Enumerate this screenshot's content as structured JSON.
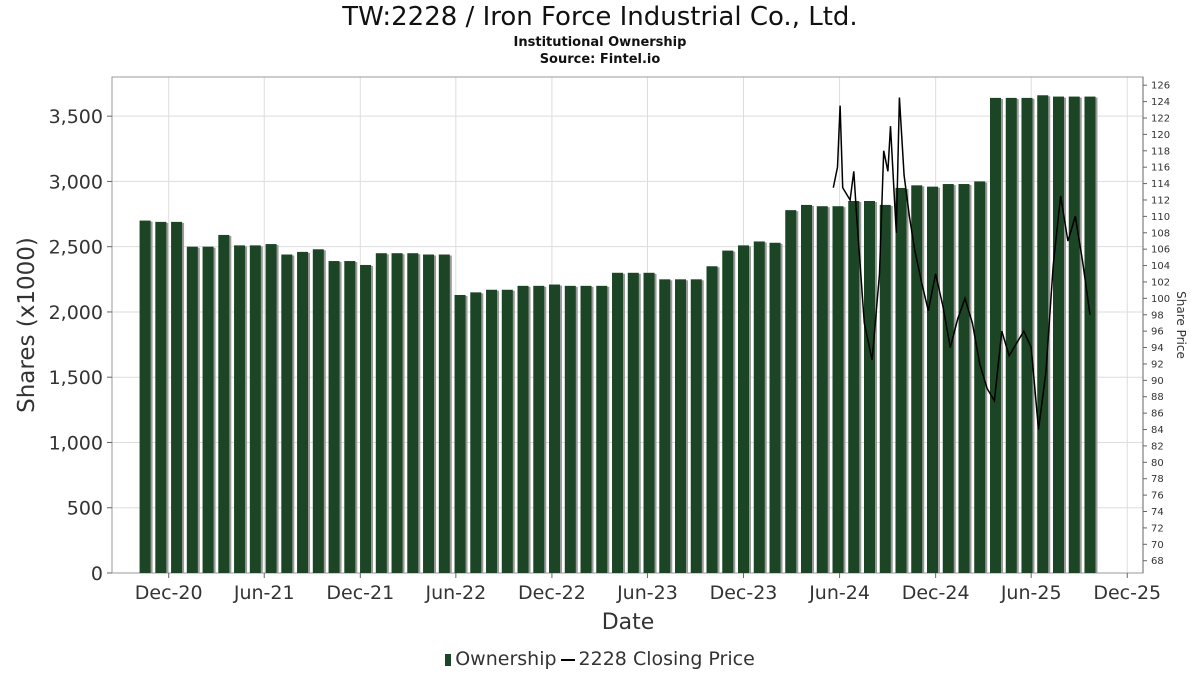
{
  "title": "TW:2228 / Iron Force Industrial Co., Ltd.",
  "subtitle": "Institutional Ownership",
  "source": "Source: Fintel.io",
  "legend": {
    "ownership": "Ownership",
    "price": "2228 Closing Price"
  },
  "colors": {
    "bar": "#1b4524",
    "bar_shadow": "#9a9a9a",
    "line": "#000000",
    "grid": "#dddddd"
  },
  "chart_data": {
    "type": "bar",
    "title": "TW:2228 / Iron Force Industrial Co., Ltd.",
    "xlabel": "Date",
    "ylabel": "Shares (x1000)",
    "y2label": "Share Price",
    "ylim": [
      0,
      3800
    ],
    "y2lim": [
      66.5,
      127
    ],
    "xlim": [
      "2020-08-15",
      "2025-12-31"
    ],
    "grid": true,
    "legend_position": "bottom",
    "x_ticks": [
      {
        "label": "Dec-20",
        "date": "2020-12-01"
      },
      {
        "label": "Jun-21",
        "date": "2021-06-01"
      },
      {
        "label": "Dec-21",
        "date": "2021-12-01"
      },
      {
        "label": "Jun-22",
        "date": "2022-06-01"
      },
      {
        "label": "Dec-22",
        "date": "2022-12-01"
      },
      {
        "label": "Jun-23",
        "date": "2023-06-01"
      },
      {
        "label": "Dec-23",
        "date": "2023-12-01"
      },
      {
        "label": "Jun-24",
        "date": "2024-06-01"
      },
      {
        "label": "Dec-24",
        "date": "2024-12-01"
      },
      {
        "label": "Jun-25",
        "date": "2025-06-01"
      },
      {
        "label": "Dec-25",
        "date": "2025-12-01"
      }
    ],
    "y_ticks": [
      {
        "label": "0",
        "value": 0
      },
      {
        "label": "500",
        "value": 500
      },
      {
        "label": "1,000",
        "value": 1000
      },
      {
        "label": "1,500",
        "value": 1500
      },
      {
        "label": "2,000",
        "value": 2000
      },
      {
        "label": "2,500",
        "value": 2500
      },
      {
        "label": "3,000",
        "value": 3000
      },
      {
        "label": "3,500",
        "value": 3500
      }
    ],
    "y2_ticks": [
      68,
      70,
      72,
      74,
      76,
      78,
      80,
      82,
      84,
      86,
      88,
      90,
      92,
      94,
      96,
      98,
      100,
      102,
      104,
      106,
      108,
      110,
      112,
      114,
      116,
      118,
      120,
      122,
      124,
      126
    ],
    "series": [
      {
        "name": "Ownership",
        "type": "bar",
        "x": [
          "2020-10-17",
          "2020-11-16",
          "2020-12-16",
          "2021-01-15",
          "2021-02-14",
          "2021-03-16",
          "2021-04-15",
          "2021-05-15",
          "2021-06-14",
          "2021-07-14",
          "2021-08-13",
          "2021-09-12",
          "2021-10-12",
          "2021-11-11",
          "2021-12-11",
          "2022-01-10",
          "2022-02-09",
          "2022-03-11",
          "2022-04-10",
          "2022-05-10",
          "2022-06-09",
          "2022-07-09",
          "2022-08-08",
          "2022-09-07",
          "2022-10-07",
          "2022-11-06",
          "2022-12-06",
          "2023-01-05",
          "2023-02-04",
          "2023-03-06",
          "2023-04-05",
          "2023-05-05",
          "2023-06-04",
          "2023-07-04",
          "2023-08-03",
          "2023-09-02",
          "2023-10-02",
          "2023-11-01",
          "2023-12-01",
          "2023-12-31",
          "2024-01-30",
          "2024-02-29",
          "2024-03-30",
          "2024-04-29",
          "2024-05-29",
          "2024-06-28",
          "2024-07-28",
          "2024-08-27",
          "2024-09-26",
          "2024-10-26",
          "2024-11-25",
          "2024-12-25",
          "2025-01-24",
          "2025-02-23",
          "2025-03-25",
          "2025-04-24",
          "2025-05-24",
          "2025-06-23",
          "2025-07-23",
          "2025-08-22",
          "2025-09-21"
        ],
        "values": [
          2700,
          2690,
          2690,
          2500,
          2500,
          2590,
          2510,
          2510,
          2520,
          2440,
          2460,
          2480,
          2390,
          2390,
          2360,
          2450,
          2450,
          2450,
          2440,
          2440,
          2130,
          2150,
          2170,
          2170,
          2200,
          2200,
          2210,
          2200,
          2200,
          2200,
          2300,
          2300,
          2300,
          2250,
          2250,
          2250,
          2350,
          2470,
          2510,
          2540,
          2530,
          2780,
          2820,
          2810,
          2810,
          2850,
          2850,
          2820,
          2950,
          2970,
          2960,
          2980,
          2980,
          3000,
          3640,
          3640,
          3640,
          3660,
          3650,
          3650,
          3650
        ]
      },
      {
        "name": "2228 Closing Price",
        "type": "line",
        "x": [
          "2024-05-20",
          "2024-05-28",
          "2024-06-02",
          "2024-06-07",
          "2024-06-21",
          "2024-06-28",
          "2024-07-03",
          "2024-07-18",
          "2024-08-02",
          "2024-08-16",
          "2024-08-24",
          "2024-09-01",
          "2024-09-06",
          "2024-09-12",
          "2024-09-17",
          "2024-09-23",
          "2024-10-02",
          "2024-10-12",
          "2024-10-22",
          "2024-11-04",
          "2024-11-17",
          "2024-12-01",
          "2024-12-15",
          "2024-12-29",
          "2025-01-12",
          "2025-01-26",
          "2025-02-09",
          "2025-02-23",
          "2025-03-09",
          "2025-03-23",
          "2025-04-06",
          "2025-04-20",
          "2025-05-04",
          "2025-05-18",
          "2025-06-01",
          "2025-06-15",
          "2025-06-29",
          "2025-07-13",
          "2025-07-27",
          "2025-08-10",
          "2025-08-24",
          "2025-09-07",
          "2025-09-21"
        ],
        "values": [
          113.5,
          116,
          123.5,
          113.5,
          112,
          115.5,
          110.5,
          97,
          92.5,
          103,
          118,
          115.5,
          121,
          114,
          108,
          124.5,
          115,
          110,
          106,
          102,
          98.5,
          103,
          99,
          94,
          97.5,
          100,
          97,
          92,
          89,
          87.5,
          96,
          93,
          94.5,
          96,
          94,
          84,
          91,
          104,
          112.5,
          107,
          110,
          104.5,
          98
        ]
      }
    ]
  }
}
